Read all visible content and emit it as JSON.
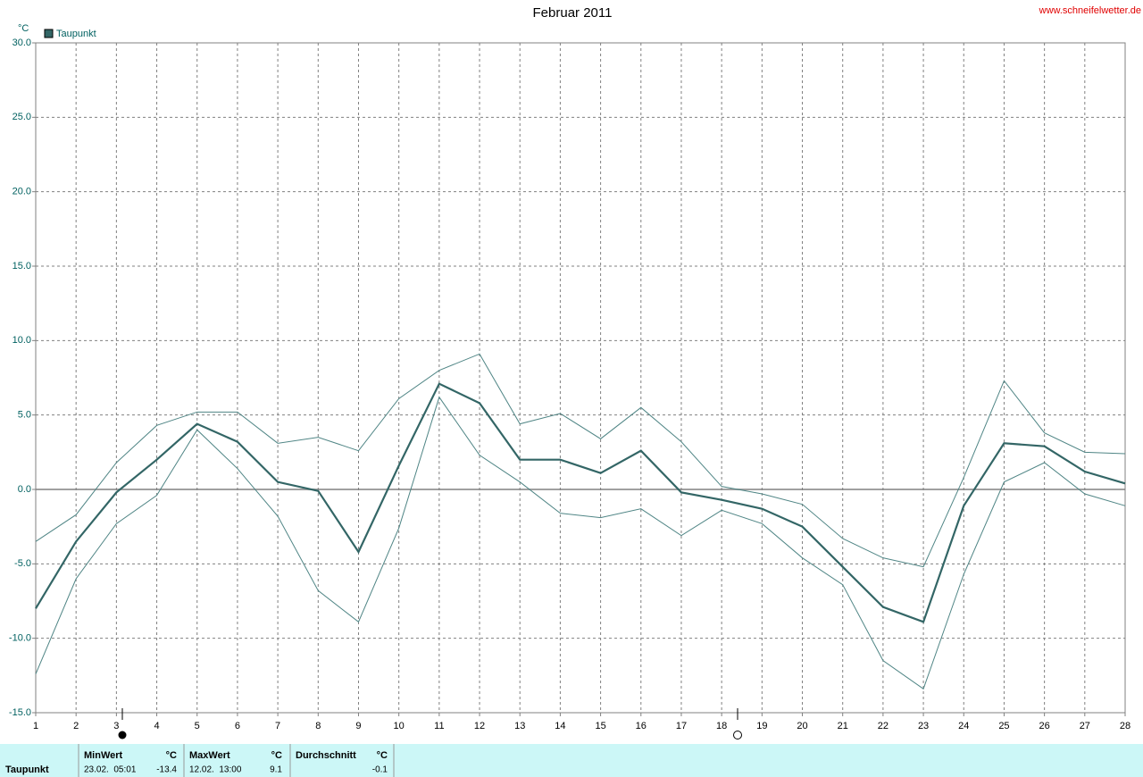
{
  "chart_data": {
    "type": "line",
    "title": "Februar 2011",
    "source": "www.schneifelwetter.de",
    "y_unit": "°C",
    "x": [
      1,
      2,
      3,
      4,
      5,
      6,
      7,
      8,
      9,
      10,
      11,
      12,
      13,
      14,
      15,
      16,
      17,
      18,
      19,
      20,
      21,
      22,
      23,
      24,
      25,
      26,
      27,
      28
    ],
    "xlim": [
      1,
      28
    ],
    "xticks": [
      1,
      2,
      3,
      4,
      5,
      6,
      7,
      8,
      9,
      10,
      11,
      12,
      13,
      14,
      15,
      16,
      17,
      18,
      19,
      20,
      21,
      22,
      23,
      24,
      25,
      26,
      27,
      28
    ],
    "ylim": [
      -15,
      30
    ],
    "yticks": [
      {
        "value": -15,
        "label": "-15.0"
      },
      {
        "value": -10,
        "label": "-10.0"
      },
      {
        "value": -5,
        "label": "-5.0"
      },
      {
        "value": 0,
        "label": "0.0"
      },
      {
        "value": 5,
        "label": "5.0"
      },
      {
        "value": 10,
        "label": "10.0"
      },
      {
        "value": 15,
        "label": "15.0"
      },
      {
        "value": 20,
        "label": "20.0"
      },
      {
        "value": 25,
        "label": "25.0"
      },
      {
        "value": 30,
        "label": "30.0"
      }
    ],
    "grid": true,
    "legend": "top-left",
    "series": [
      {
        "name": "Taupunkt",
        "color": "#336666",
        "values": [
          -8.0,
          -3.5,
          -0.2,
          2.0,
          4.4,
          3.2,
          0.5,
          -0.1,
          -4.2,
          1.6,
          7.1,
          5.8,
          2.0,
          2.0,
          1.1,
          2.6,
          -0.2,
          -0.7,
          -1.3,
          -2.5,
          -5.2,
          -7.9,
          -8.9,
          -1.1,
          3.1,
          2.9,
          1.2,
          0.4
        ]
      },
      {
        "color": "#4f8585",
        "values": [
          -3.5,
          -1.7,
          1.8,
          4.3,
          5.2,
          5.2,
          3.1,
          3.5,
          2.6,
          6.1,
          8.0,
          9.1,
          4.4,
          5.1,
          3.4,
          5.5,
          3.2,
          0.2,
          -0.3,
          -1.0,
          -3.3,
          -4.6,
          -5.2,
          0.8,
          7.3,
          3.8,
          2.5,
          2.4
        ]
      },
      {
        "color": "#4f8585",
        "values": [
          -12.4,
          -6.0,
          -2.3,
          -0.4,
          4.0,
          1.4,
          -1.8,
          -6.8,
          -8.9,
          -2.6,
          6.2,
          2.3,
          0.5,
          -1.6,
          -1.9,
          -1.3,
          -3.1,
          -1.4,
          -2.3,
          -4.6,
          -6.4,
          -11.5,
          -13.4,
          -5.7,
          0.5,
          1.8,
          -0.3,
          -1.1
        ]
      }
    ]
  },
  "stats": {
    "row_label": "Taupunkt",
    "columns": [
      {
        "header": "MinWert",
        "unit": "°C",
        "time": "23.02.  05:01",
        "value": -13.4
      },
      {
        "header": "MaxWert",
        "unit": "°C",
        "time": "12.02.  13:00",
        "value": 9.1
      },
      {
        "header": "Durchschnitt",
        "unit": "°C",
        "value": -0.1
      }
    ]
  }
}
